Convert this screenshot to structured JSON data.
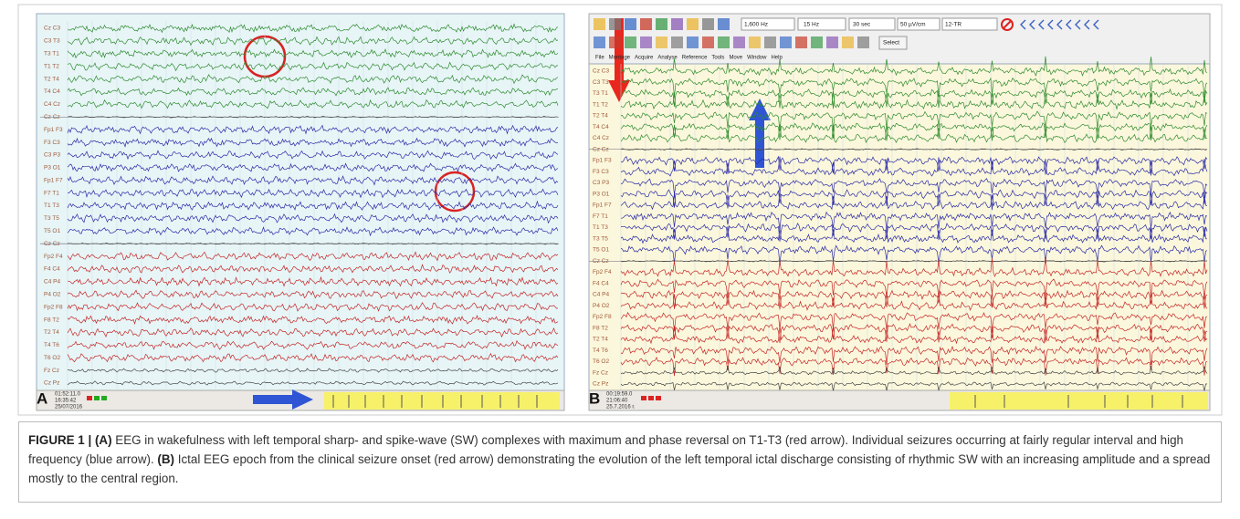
{
  "panel_a": {
    "letter": "A",
    "channels": [
      "Cz C3",
      "C3 T3",
      "T3 T1",
      "T1 T2",
      "T2 T4",
      "T4 C4",
      "C4 Cz",
      "Cz Cz",
      "Fp1 F3",
      "F3 C3",
      "C3 P3",
      "P3 O1",
      "Fp1 F7",
      "F7 T1",
      "T1 T3",
      "T3 T5",
      "T5 O1",
      "Cz Cz",
      "Fp2 F4",
      "F4 C4",
      "C4 P4",
      "P4 O2",
      "Fp2 F8",
      "F8 T2",
      "T2 T4",
      "T4 T6",
      "T6 O2",
      "Fz Cz",
      "Cz Pz"
    ],
    "status": {
      "time": "01:52:11.0",
      "clock": "16:35:42",
      "date": "25/07/2016"
    }
  },
  "panel_b": {
    "letter": "B",
    "channels": [
      "Cz C3",
      "C3 T3",
      "T3 T1",
      "T1 T2",
      "T2 T4",
      "T4 C4",
      "C4 Cz",
      "Cz Cz",
      "Fp1 F3",
      "F3 C3",
      "C3 P3",
      "P3 O1",
      "Fp1 F7",
      "F7 T1",
      "T1 T3",
      "T3 T5",
      "T5 O1",
      "Cz Cz",
      "Fp2 F4",
      "F4 C4",
      "C4 P4",
      "P4 O2",
      "Fp2 F8",
      "F8 T2",
      "T2 T4",
      "T4 T6",
      "T6 O2",
      "Fz Cz",
      "Cz Pz"
    ],
    "status": {
      "time": "00:19:59.0",
      "clock": "21:06:40",
      "date": "25.7.2016 г."
    },
    "toolbar": {
      "sample_rate": "1,600 Hz",
      "filter": "15 Hz",
      "page": "30 sec",
      "sensitivity": "50 µV/cm",
      "montage": "12-TR",
      "select": "Select"
    },
    "menu": [
      "File",
      "Montage",
      "Acquire",
      "Analyse",
      "Reference",
      "Tools",
      "Move",
      "Window",
      "Help"
    ]
  },
  "caption": {
    "label": "FIGURE 1 |",
    "a_marker": "(A)",
    "a_text": "EEG in wakefulness with left temporal sharp- and spike-wave (SW) complexes with maximum and phase reversal on T1-T3 (red arrow). Individual seizures occurring at fairly regular interval and high frequency (blue arrow).",
    "b_marker": "(B)",
    "b_text": "Ictal EEG epoch from the clinical seizure onset (red arrow) demonstrating the evolution of the left temporal ictal discharge consisting of rhythmic SW with an increasing amplitude and a spread mostly to the central region."
  }
}
